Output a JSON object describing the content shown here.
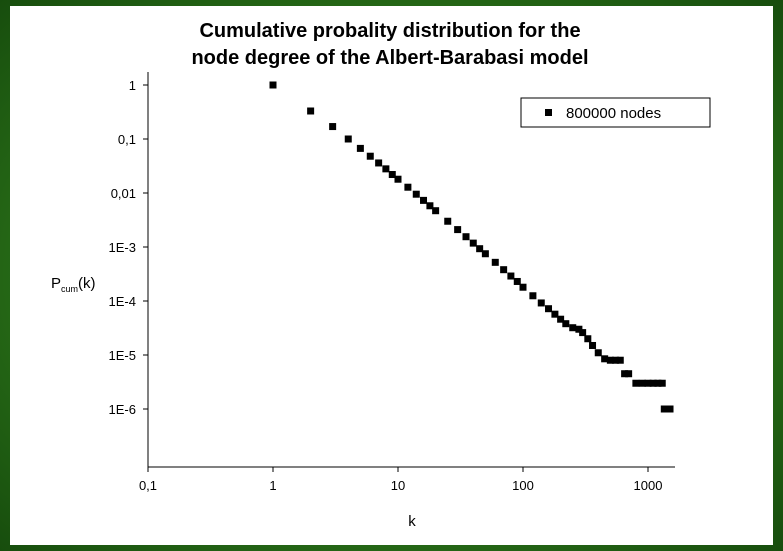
{
  "chart_data": {
    "type": "scatter",
    "title_lines": [
      "Cumulative probality distribution for the",
      "node degree of the Albert-Barabasi model"
    ],
    "xlabel": "k",
    "ylabel_main": "P",
    "ylabel_sub": "cum",
    "ylabel_tail": "(k)",
    "x_scale": "log",
    "y_scale": "log",
    "xlim": [
      0.1,
      1800
    ],
    "ylim": [
      1e-07,
      3
    ],
    "x_ticks": [
      0.1,
      1,
      10,
      100,
      1000
    ],
    "x_tick_labels": [
      "0,1",
      "1",
      "10",
      "100",
      "1000"
    ],
    "y_ticks": [
      1,
      0.1,
      0.01,
      0.001,
      0.0001,
      1e-05,
      1e-06
    ],
    "y_tick_labels": [
      "1",
      "0,1",
      "0,01",
      "1E-3",
      "1E-4",
      "1E-5",
      "1E-6"
    ],
    "grid": false,
    "legend_position": "top-right",
    "series": [
      {
        "name": "800000 nodes",
        "marker": "square",
        "color": "#000000",
        "x": [
          1,
          2,
          3,
          4,
          5,
          6,
          7,
          8,
          9,
          10,
          12,
          14,
          16,
          18,
          20,
          25,
          30,
          35,
          40,
          45,
          50,
          60,
          70,
          80,
          90,
          100,
          120,
          140,
          160,
          180,
          200,
          220,
          250,
          280,
          300,
          330,
          360,
          400,
          450,
          500,
          550,
          600,
          650,
          700,
          800,
          900,
          1000,
          1100,
          1200,
          1300,
          1350,
          1400,
          1450,
          1500
        ],
        "y": [
          1,
          0.33,
          0.17,
          0.1,
          0.067,
          0.048,
          0.036,
          0.028,
          0.022,
          0.018,
          0.0128,
          0.0095,
          0.0073,
          0.0058,
          0.0047,
          0.003,
          0.0021,
          0.00155,
          0.00118,
          0.00093,
          0.00075,
          0.00052,
          0.00038,
          0.00029,
          0.00023,
          0.00018,
          0.000125,
          9.2e-05,
          7.2e-05,
          5.7e-05,
          4.6e-05,
          3.8e-05,
          3.2e-05,
          3e-05,
          2.6e-05,
          2e-05,
          1.5e-05,
          1.1e-05,
          8.5e-06,
          8e-06,
          8e-06,
          8e-06,
          4.5e-06,
          4.5e-06,
          3e-06,
          3e-06,
          3e-06,
          3e-06,
          3e-06,
          3e-06,
          1e-06,
          1e-06,
          1e-06,
          1e-06
        ]
      }
    ]
  }
}
